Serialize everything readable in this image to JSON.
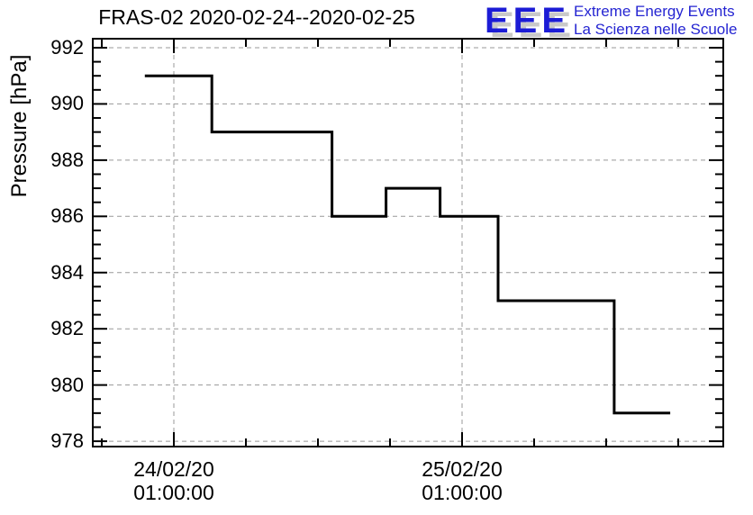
{
  "header": {
    "title": "FRAS-02 2020-02-24--2020-02-25",
    "logo": {
      "letters": "EEE",
      "tagline_line1": "Extreme Energy Events",
      "tagline_line2": "La Scienza nelle Scuole",
      "letters_color": "#1c1cd6",
      "tagline_color": "#2525d2",
      "shadow_color": "#c9c9c9"
    }
  },
  "chart_data": {
    "type": "line",
    "step": true,
    "title": "FRAS-02 2020-02-24--2020-02-25",
    "xlabel": "",
    "ylabel": "Pressure [hPa]",
    "legend": "none",
    "grid": "dashed gray lines at every major tick, x and y",
    "line_color": "#000000",
    "grid_color": "#989898",
    "ylim": [
      977.81,
      992.32
    ],
    "y_major_ticks": [
      978,
      980,
      982,
      984,
      986,
      988,
      990,
      992
    ],
    "y_minor_tick_step": 0.5,
    "xlim": [
      "2020-02-23T18:15:00",
      "2020-02-25T22:45:00"
    ],
    "x_minor_tick_hours": 6,
    "x_major_ticks": [
      {
        "time": "2020-02-24T01:00:00",
        "label_line1": "24/02/20",
        "label_line2": "01:00:00"
      },
      {
        "time": "2020-02-25T01:00:00",
        "label_line1": "25/02/20",
        "label_line2": "01:00:00"
      }
    ],
    "points": [
      {
        "time": "2020-02-23T22:35:00",
        "pressure": 991
      },
      {
        "time": "2020-02-24T04:10:00",
        "pressure": 989
      },
      {
        "time": "2020-02-24T14:10:00",
        "pressure": 986
      },
      {
        "time": "2020-02-24T18:40:00",
        "pressure": 987
      },
      {
        "time": "2020-02-24T23:10:00",
        "pressure": 986
      },
      {
        "time": "2020-02-25T04:00:00",
        "pressure": 983
      },
      {
        "time": "2020-02-25T13:40:00",
        "pressure": 979
      },
      {
        "time": "2020-02-25T18:20:00",
        "pressure": 979
      }
    ]
  }
}
